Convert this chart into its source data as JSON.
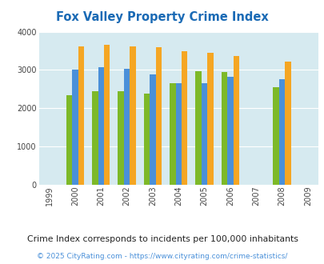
{
  "title": "Fox Valley Property Crime Index",
  "years": [
    1999,
    2000,
    2001,
    2002,
    2003,
    2004,
    2005,
    2006,
    2007,
    2008,
    2009
  ],
  "fox_valley": [
    null,
    2350,
    2450,
    2450,
    2380,
    2650,
    2970,
    2950,
    null,
    2560,
    null
  ],
  "wisconsin": [
    null,
    3000,
    3080,
    3040,
    2890,
    2660,
    2660,
    2830,
    null,
    2750,
    null
  ],
  "national": [
    null,
    3620,
    3650,
    3620,
    3600,
    3500,
    3440,
    3360,
    null,
    3210,
    null
  ],
  "fox_valley_color": "#7db928",
  "wisconsin_color": "#4a90d9",
  "national_color": "#f5a623",
  "bg_color": "#d6eaf0",
  "fig_bg": "#ffffff",
  "ylim": [
    0,
    4000
  ],
  "yticks": [
    0,
    1000,
    2000,
    3000,
    4000
  ],
  "footnote1": "Crime Index corresponds to incidents per 100,000 inhabitants",
  "footnote2": "© 2025 CityRating.com - https://www.cityrating.com/crime-statistics/",
  "title_color": "#1a6ab5",
  "footnote1_color": "#222222",
  "footnote2_color": "#4a90d9"
}
